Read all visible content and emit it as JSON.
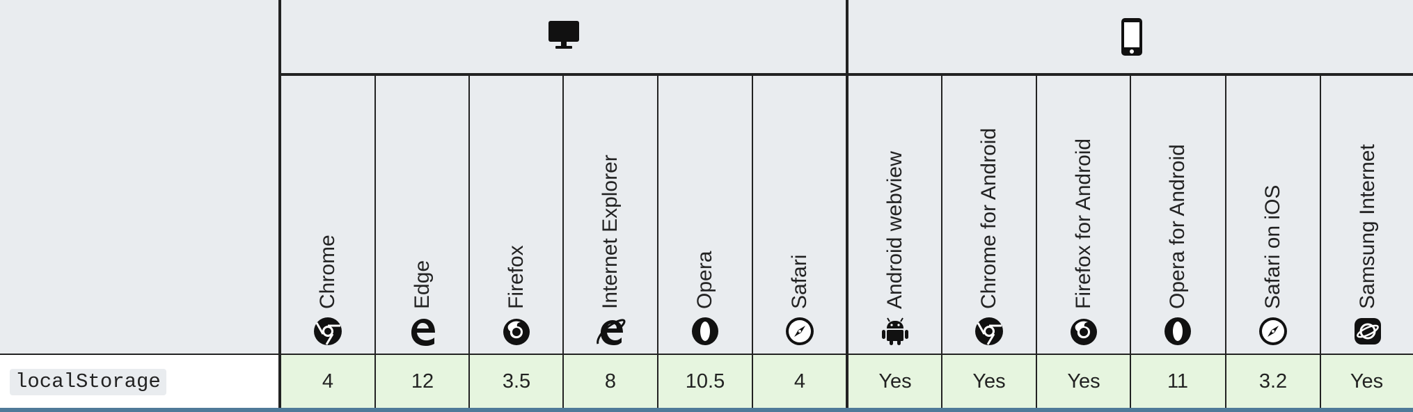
{
  "groups": [
    {
      "name": "desktop-icon"
    },
    {
      "name": "mobile-icon"
    }
  ],
  "browsers": [
    {
      "label": "Chrome",
      "icon": "chrome-icon",
      "value": "4"
    },
    {
      "label": "Edge",
      "icon": "edge-icon",
      "value": "12"
    },
    {
      "label": "Firefox",
      "icon": "firefox-icon",
      "value": "3.5"
    },
    {
      "label": "Internet Explorer",
      "icon": "internet-explorer-icon",
      "value": "8"
    },
    {
      "label": "Opera",
      "icon": "opera-icon",
      "value": "10.5"
    },
    {
      "label": "Safari",
      "icon": "safari-icon",
      "value": "4"
    },
    {
      "label": "Android webview",
      "icon": "android-icon",
      "value": "Yes"
    },
    {
      "label": "Chrome for Android",
      "icon": "chrome-icon",
      "value": "Yes"
    },
    {
      "label": "Firefox for Android",
      "icon": "firefox-icon",
      "value": "Yes"
    },
    {
      "label": "Opera for Android",
      "icon": "opera-icon",
      "value": "11"
    },
    {
      "label": "Safari on iOS",
      "icon": "safari-icon",
      "value": "3.2"
    },
    {
      "label": "Samsung Internet",
      "icon": "samsung-internet-icon",
      "value": "Yes"
    }
  ],
  "feature": {
    "name": "localStorage"
  },
  "colors": {
    "supported": "#e6f5df",
    "header": "#e9ecef",
    "border": "#222222",
    "bottom_bar": "#4f7a99"
  }
}
